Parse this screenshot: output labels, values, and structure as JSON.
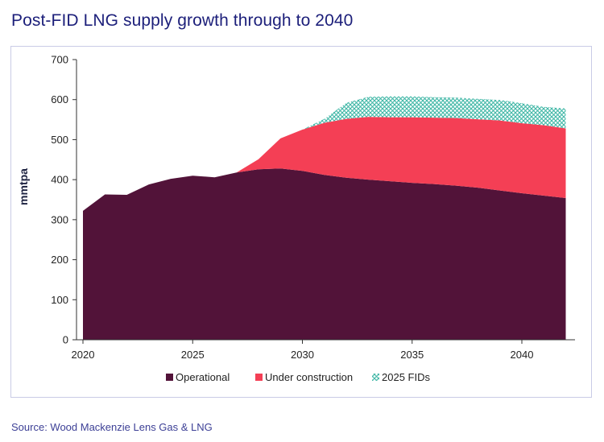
{
  "title": "Post-FID LNG supply growth through to 2040",
  "source": "Source: Wood Mackenzie Lens Gas & LNG",
  "colors": {
    "operational": "#521339",
    "under_construction": "#f43f55",
    "fids": "#3fb7a6",
    "title": "#1c1f7a",
    "frame": "#c9cbe6"
  },
  "chart_data": {
    "type": "area",
    "stacked": true,
    "title": "Post-FID LNG supply growth through to 2040",
    "xlabel": "",
    "ylabel": "mmtpa",
    "xlim": [
      2020,
      2042
    ],
    "ylim": [
      0,
      700
    ],
    "x_ticks": [
      2020,
      2025,
      2030,
      2035,
      2040
    ],
    "x_tick_labels": [
      "2020",
      "2025",
      "2030",
      "2035",
      "2040"
    ],
    "y_ticks": [
      0,
      100,
      200,
      300,
      400,
      500,
      600,
      700
    ],
    "y_tick_labels": [
      "0",
      "100",
      "200",
      "300",
      "400",
      "500",
      "600",
      "700"
    ],
    "grid": false,
    "legend_position": "bottom",
    "x": [
      2020,
      2021,
      2022,
      2023,
      2024,
      2025,
      2026,
      2027,
      2028,
      2029,
      2030,
      2031,
      2032,
      2033,
      2034,
      2035,
      2036,
      2037,
      2038,
      2039,
      2040,
      2041,
      2042
    ],
    "series": [
      {
        "name": "Operational",
        "style": "solid",
        "values": [
          322,
          363,
          362,
          388,
          402,
          410,
          406,
          418,
          426,
          428,
          422,
          412,
          405,
          400,
          396,
          392,
          389,
          385,
          380,
          373,
          366,
          360,
          354
        ]
      },
      {
        "name": "Under construction",
        "style": "solid",
        "values": [
          0,
          0,
          0,
          0,
          0,
          0,
          0,
          0,
          25,
          75,
          103,
          130,
          147,
          157,
          160,
          164,
          166,
          169,
          171,
          175,
          175,
          176,
          174
        ]
      },
      {
        "name": "2025 FIDs",
        "style": "hatched",
        "values": [
          0,
          0,
          0,
          0,
          0,
          0,
          0,
          0,
          0,
          0,
          0,
          10,
          40,
          50,
          52,
          52,
          51,
          51,
          51,
          51,
          50,
          46,
          50
        ]
      }
    ]
  }
}
